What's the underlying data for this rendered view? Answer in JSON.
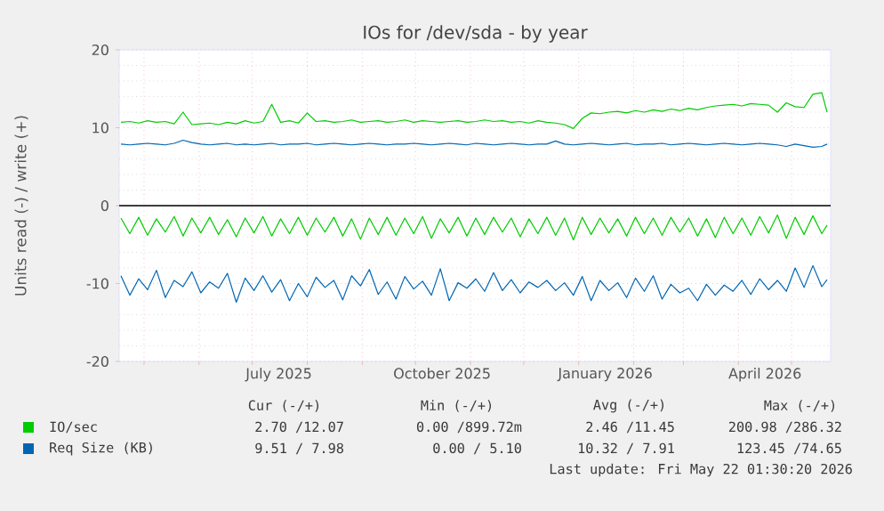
{
  "chart_data": {
    "type": "line",
    "title": "IOs for /dev/sda - by year",
    "ylabel": "Units read (-) / write (+)",
    "x": [
      "2025-04-18",
      "2025-04-23",
      "2025-04-28",
      "2025-05-03",
      "2025-05-08",
      "2025-05-13",
      "2025-05-18",
      "2025-05-23",
      "2025-05-28",
      "2025-06-02",
      "2025-06-07",
      "2025-06-12",
      "2025-06-17",
      "2025-06-22",
      "2025-06-27",
      "2025-07-02",
      "2025-07-07",
      "2025-07-12",
      "2025-07-17",
      "2025-07-22",
      "2025-07-27",
      "2025-08-01",
      "2025-08-06",
      "2025-08-11",
      "2025-08-16",
      "2025-08-21",
      "2025-08-26",
      "2025-08-31",
      "2025-09-05",
      "2025-09-10",
      "2025-09-15",
      "2025-09-20",
      "2025-09-25",
      "2025-09-30",
      "2025-10-05",
      "2025-10-10",
      "2025-10-15",
      "2025-10-20",
      "2025-10-25",
      "2025-10-30",
      "2025-11-04",
      "2025-11-09",
      "2025-11-14",
      "2025-11-19",
      "2025-11-24",
      "2025-11-29",
      "2025-12-04",
      "2025-12-09",
      "2025-12-14",
      "2025-12-19",
      "2025-12-24",
      "2025-12-29",
      "2026-01-03",
      "2026-01-08",
      "2026-01-13",
      "2026-01-18",
      "2026-01-23",
      "2026-01-28",
      "2026-02-02",
      "2026-02-07",
      "2026-02-12",
      "2026-02-17",
      "2026-02-22",
      "2026-02-27",
      "2026-03-04",
      "2026-03-09",
      "2026-03-14",
      "2026-03-19",
      "2026-03-24",
      "2026-03-29",
      "2026-04-03",
      "2026-04-08",
      "2026-04-13",
      "2026-04-18",
      "2026-04-23",
      "2026-04-28",
      "2026-05-03",
      "2026-05-08",
      "2026-05-13",
      "2026-05-18",
      "2026-05-21"
    ],
    "series": [
      {
        "name": "IO/sec",
        "color": "#00cc00",
        "values": [
          10.7,
          10.8,
          10.6,
          10.9,
          10.7,
          10.8,
          10.5,
          12.0,
          10.4,
          10.5,
          10.6,
          10.4,
          10.7,
          10.5,
          10.9,
          10.6,
          10.8,
          13.0,
          10.7,
          10.9,
          10.6,
          11.9,
          10.8,
          10.9,
          10.7,
          10.8,
          11.0,
          10.7,
          10.8,
          10.9,
          10.7,
          10.8,
          11.0,
          10.7,
          10.9,
          10.8,
          10.7,
          10.8,
          10.9,
          10.7,
          10.8,
          11.0,
          10.8,
          10.9,
          10.7,
          10.8,
          10.6,
          10.9,
          10.7,
          10.6,
          10.4,
          9.9,
          11.2,
          11.9,
          11.8,
          12.0,
          12.1,
          11.9,
          12.2,
          12.0,
          12.3,
          12.1,
          12.4,
          12.2,
          12.5,
          12.3,
          12.6,
          12.8,
          12.9,
          13.0,
          12.8,
          13.1,
          13.0,
          12.9,
          12.0,
          13.2,
          12.7,
          12.6,
          14.3,
          14.5,
          12.0
        ]
      },
      {
        "name": "Req Size (KB)",
        "color": "#0066b3",
        "values": [
          7.9,
          7.8,
          7.9,
          8.0,
          7.9,
          7.8,
          8.0,
          8.4,
          8.1,
          7.9,
          7.8,
          7.9,
          8.0,
          7.8,
          7.9,
          7.8,
          7.9,
          8.0,
          7.8,
          7.9,
          7.9,
          8.0,
          7.8,
          7.9,
          8.0,
          7.9,
          7.8,
          7.9,
          8.0,
          7.9,
          7.8,
          7.9,
          7.9,
          8.0,
          7.9,
          7.8,
          7.9,
          8.0,
          7.9,
          7.8,
          8.0,
          7.9,
          7.8,
          7.9,
          8.0,
          7.9,
          7.8,
          7.9,
          7.9,
          8.3,
          7.9,
          7.8,
          7.9,
          8.0,
          7.9,
          7.8,
          7.9,
          8.0,
          7.8,
          7.9,
          7.9,
          8.0,
          7.8,
          7.9,
          8.0,
          7.9,
          7.8,
          7.9,
          8.0,
          7.9,
          7.8,
          7.9,
          8.0,
          7.9,
          7.8,
          7.6,
          7.9,
          7.7,
          7.5,
          7.6,
          7.9
        ]
      },
      {
        "color": "#00cc00",
        "values": [
          -1.6,
          -3.6,
          -1.5,
          -3.8,
          -1.7,
          -3.4,
          -1.4,
          -3.9,
          -1.6,
          -3.5,
          -1.5,
          -3.7,
          -1.8,
          -4.0,
          -1.6,
          -3.5,
          -1.4,
          -3.9,
          -1.7,
          -3.6,
          -1.5,
          -3.8,
          -1.6,
          -3.4,
          -1.5,
          -3.9,
          -1.7,
          -4.3,
          -1.6,
          -3.7,
          -1.5,
          -3.8,
          -1.6,
          -3.6,
          -1.4,
          -4.2,
          -1.7,
          -3.5,
          -1.5,
          -3.9,
          -1.6,
          -3.7,
          -1.5,
          -3.4,
          -1.6,
          -4.0,
          -1.7,
          -3.6,
          -1.5,
          -3.8,
          -1.6,
          -4.4,
          -1.5,
          -3.7,
          -1.6,
          -3.5,
          -1.7,
          -3.9,
          -1.5,
          -3.6,
          -1.6,
          -3.8,
          -1.5,
          -3.4,
          -1.6,
          -3.9,
          -1.7,
          -4.1,
          -1.5,
          -3.6,
          -1.6,
          -3.8,
          -1.4,
          -3.5,
          -1.2,
          -4.2,
          -1.5,
          -3.7,
          -1.3,
          -3.6,
          -2.5
        ]
      },
      {
        "color": "#0066b3",
        "values": [
          -9.0,
          -11.5,
          -9.4,
          -10.8,
          -8.3,
          -11.8,
          -9.6,
          -10.4,
          -8.5,
          -11.2,
          -9.8,
          -10.6,
          -8.7,
          -12.4,
          -9.3,
          -10.9,
          -9.0,
          -11.1,
          -9.5,
          -12.2,
          -10.0,
          -11.7,
          -9.2,
          -10.5,
          -9.6,
          -12.1,
          -9.0,
          -10.3,
          -8.2,
          -11.4,
          -9.8,
          -12.0,
          -9.1,
          -10.7,
          -9.7,
          -11.5,
          -8.1,
          -12.2,
          -9.9,
          -10.6,
          -9.4,
          -11.0,
          -8.6,
          -10.9,
          -9.5,
          -11.2,
          -9.8,
          -10.5,
          -9.6,
          -10.9,
          -9.9,
          -11.5,
          -9.1,
          -12.2,
          -9.6,
          -10.9,
          -9.9,
          -11.8,
          -9.3,
          -11.0,
          -9.0,
          -12.0,
          -10.1,
          -11.2,
          -10.6,
          -12.2,
          -10.1,
          -11.5,
          -10.2,
          -11.0,
          -9.6,
          -11.4,
          -9.4,
          -10.8,
          -9.6,
          -11.0,
          -8.0,
          -10.5,
          -7.7,
          -10.4,
          -9.5
        ]
      }
    ],
    "xlim": [
      "2025-04-17",
      "2026-05-23"
    ],
    "xticks": [
      {
        "value": "2025-05-01",
        "label": null
      },
      {
        "value": "2025-06-01",
        "label": null
      },
      {
        "value": "2025-07-01",
        "label": null
      },
      {
        "value": "2025-08-01",
        "label": null
      },
      {
        "value": "2025-09-01",
        "label": null
      },
      {
        "value": "2025-10-01",
        "label": null
      },
      {
        "value": "2025-11-01",
        "label": null
      },
      {
        "value": "2025-12-01",
        "label": null
      },
      {
        "value": "2026-01-01",
        "label": null
      },
      {
        "value": "2026-02-01",
        "label": null
      },
      {
        "value": "2026-03-01",
        "label": null
      },
      {
        "value": "2026-04-01",
        "label": null
      },
      {
        "value": "2026-05-01",
        "label": null
      },
      {
        "value": "2025-07-16",
        "label": "July 2025"
      },
      {
        "value": "2025-10-16",
        "label": "October 2025"
      },
      {
        "value": "2026-01-16",
        "label": "January 2026"
      },
      {
        "value": "2026-04-16",
        "label": "April 2026"
      }
    ],
    "ylim": [
      -20,
      20
    ],
    "yticks": [
      -20,
      -10,
      0,
      10,
      20
    ],
    "ref_lines": [
      {
        "axis": "y",
        "value": 0,
        "color": "#000000"
      }
    ],
    "grid": true,
    "legend": "bottom",
    "annotations": [
      "Cur (-/+)",
      "Min (-/+)",
      "Avg (-/+)",
      "Max (-/+)",
      "2.70 /12.07",
      "0.00 /899.72m",
      "2.46 /11.45",
      "200.98 /286.32",
      "9.51 / 7.98",
      "0.00 / 5.10",
      "10.32 / 7.91",
      "123.45 /74.65",
      "Last update: Fri May 22 01:30:20 2026"
    ]
  }
}
